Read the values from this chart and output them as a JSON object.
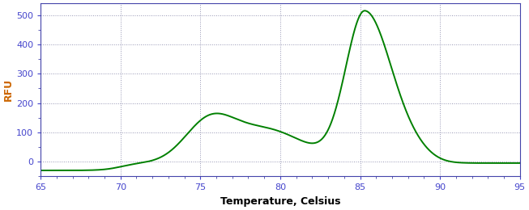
{
  "title": "",
  "xlabel": "Temperature, Celsius",
  "ylabel": "RFU",
  "xlim": [
    65,
    95
  ],
  "ylim": [
    -50,
    540
  ],
  "yticks": [
    0,
    100,
    200,
    300,
    400,
    500
  ],
  "xticks": [
    65,
    70,
    75,
    80,
    85,
    90,
    95
  ],
  "line_color": "#008000",
  "background_color": "#ffffff",
  "grid_color": "#8888aa",
  "ylabel_color": "#cc6600",
  "tick_label_color": "#4444cc",
  "xlabel_color": "#000000",
  "line_width": 1.4,
  "border_color": "#4444aa"
}
